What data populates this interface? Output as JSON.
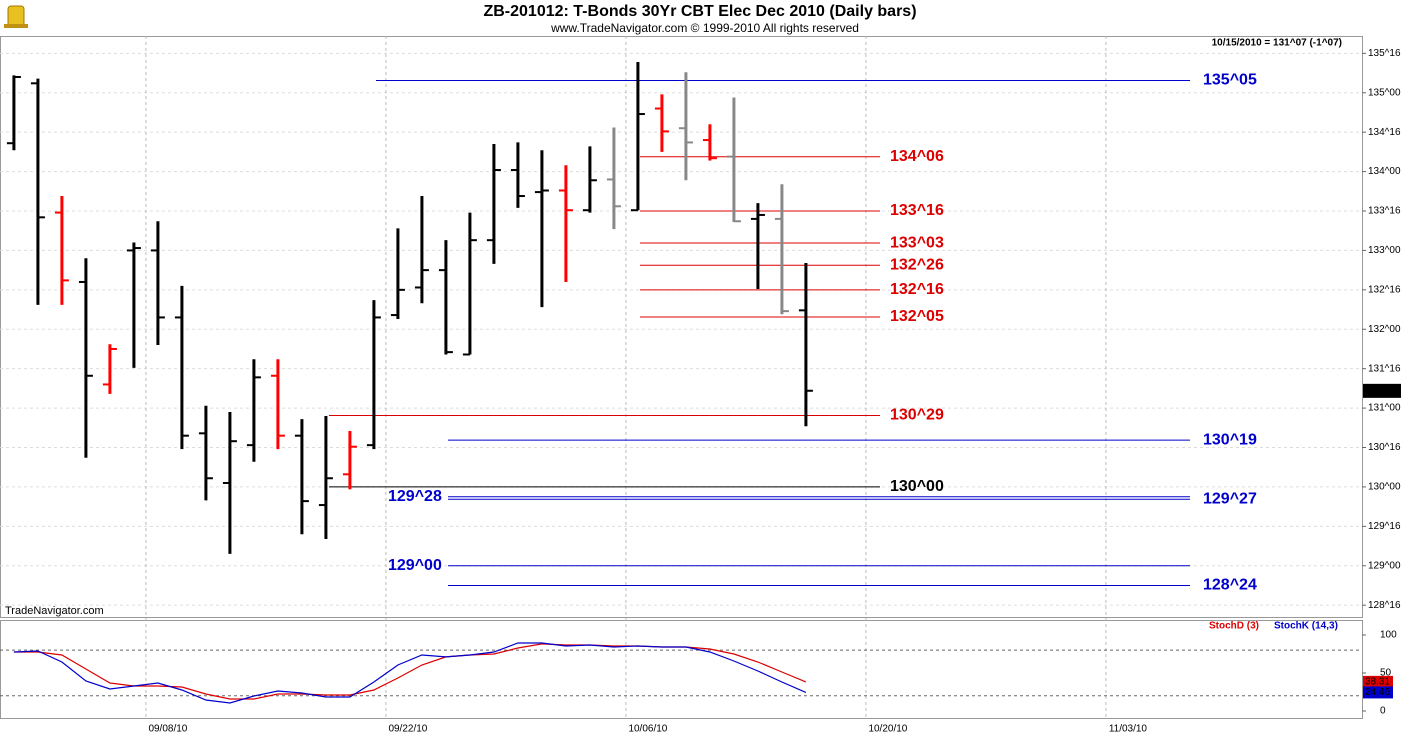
{
  "chart_data": [
    {
      "type": "ohlc",
      "title": "ZB-201012:  T-Bonds 30Yr CBT Elec Dec 2010  (Daily bars)",
      "subtitle": "www.TradeNavigator.com © 1999-2010 All rights reserved",
      "quote": "10/15/2010 = 131^07 (-1^07)",
      "watermark": "TradeNavigator.com",
      "open": [
        134.36,
        135.12,
        133.48,
        132.6,
        131.3,
        133.0,
        133.0,
        132.15,
        130.68,
        130.05,
        130.53,
        131.41,
        130.65,
        129.77,
        130.16,
        130.53,
        132.18,
        132.53,
        132.75,
        131.68,
        133.13,
        134.02,
        133.74,
        133.76,
        133.51,
        133.9,
        133.51,
        134.8,
        134.55,
        134.4,
        134.19,
        133.4,
        133.4,
        132.24
      ],
      "high": [
        135.22,
        135.18,
        133.69,
        132.9,
        131.81,
        133.1,
        133.37,
        132.55,
        131.03,
        130.95,
        131.62,
        131.62,
        130.86,
        130.9,
        130.71,
        132.37,
        133.28,
        133.69,
        133.13,
        133.48,
        134.35,
        134.37,
        134.27,
        134.08,
        134.32,
        134.56,
        135.39,
        134.98,
        135.26,
        134.6,
        134.94,
        133.6,
        133.84,
        132.84
      ],
      "low": [
        134.27,
        132.31,
        132.31,
        130.37,
        131.18,
        131.51,
        131.8,
        130.48,
        129.83,
        129.15,
        130.32,
        130.48,
        129.4,
        129.34,
        129.97,
        130.48,
        132.13,
        132.33,
        131.68,
        131.68,
        132.83,
        133.54,
        132.28,
        132.6,
        133.48,
        133.27,
        133.51,
        134.25,
        133.89,
        134.14,
        133.36,
        132.51,
        132.19,
        130.77
      ],
      "close": [
        135.2,
        133.42,
        132.62,
        131.41,
        131.75,
        133.03,
        132.15,
        130.65,
        130.11,
        130.58,
        131.39,
        130.65,
        129.82,
        130.11,
        130.51,
        132.15,
        132.5,
        132.75,
        131.71,
        133.13,
        134.02,
        133.69,
        133.76,
        133.51,
        133.89,
        133.56,
        134.73,
        134.51,
        134.37,
        134.17,
        133.37,
        133.45,
        132.23,
        131.22
      ],
      "colors": [
        "#000000",
        "#000000",
        "#ff0000",
        "#000000",
        "#ff0000",
        "#000000",
        "#000000",
        "#000000",
        "#000000",
        "#000000",
        "#000000",
        "#ff0000",
        "#000000",
        "#000000",
        "#ff0000",
        "#000000",
        "#000000",
        "#000000",
        "#000000",
        "#000000",
        "#000000",
        "#000000",
        "#000000",
        "#ff0000",
        "#000000",
        "#888888",
        "#000000",
        "#ff0000",
        "#888888",
        "#ff0000",
        "#888888",
        "#000000",
        "#888888",
        "#000000"
      ],
      "xlim": [
        -0.58,
        56.17
      ],
      "xticks": [
        {
          "value": 6,
          "label": "09/08/10"
        },
        {
          "value": 16,
          "label": "09/22/10"
        },
        {
          "value": 26,
          "label": "10/06/10"
        },
        {
          "value": 36,
          "label": "10/20/10"
        },
        {
          "value": 46,
          "label": "11/03/10"
        }
      ],
      "ylim": [
        128.35,
        135.72
      ],
      "yticks": [
        {
          "value": 135.5,
          "label": "135^16"
        },
        {
          "value": 135,
          "label": "135^00"
        },
        {
          "value": 134.5,
          "label": "134^16"
        },
        {
          "value": 134,
          "label": "134^00"
        },
        {
          "value": 133.5,
          "label": "133^16"
        },
        {
          "value": 133,
          "label": "133^00"
        },
        {
          "value": 132.5,
          "label": "132^16"
        },
        {
          "value": 132,
          "label": "132^00"
        },
        {
          "value": 131.5,
          "label": "131^16"
        },
        {
          "value": 131,
          "label": "131^00"
        },
        {
          "value": 130.5,
          "label": "130^16"
        },
        {
          "value": 130,
          "label": "130^00"
        },
        {
          "value": 129.5,
          "label": "129^16"
        },
        {
          "value": 129,
          "label": "129^00"
        },
        {
          "value": 128.5,
          "label": "128^16"
        }
      ],
      "last_price": {
        "value": 131.21875,
        "label": "131^07"
      },
      "levels": [
        {
          "value": 135.15625,
          "label": "135^05",
          "color": "#0000cc"
        },
        {
          "value": 134.1875,
          "label": "134^06",
          "color": "#dd0000"
        },
        {
          "value": 133.5,
          "label": "133^16",
          "color": "#dd0000"
        },
        {
          "value": 133.09375,
          "label": "133^03",
          "color": "#dd0000"
        },
        {
          "value": 132.8125,
          "label": "132^26",
          "color": "#dd0000"
        },
        {
          "value": 132.5,
          "label": "132^16",
          "color": "#dd0000"
        },
        {
          "value": 132.15625,
          "label": "132^05",
          "color": "#dd0000"
        },
        {
          "value": 130.90625,
          "label": "130^29",
          "color": "#dd0000"
        },
        {
          "value": 130.59375,
          "label": "130^19",
          "color": "#0000cc"
        },
        {
          "value": 130,
          "label": "130^00",
          "color": "#000000"
        },
        {
          "value": 129.875,
          "label": "129^28",
          "color": "#0000cc"
        },
        {
          "value": 129.84375,
          "label": "129^27",
          "color": "#0000cc"
        },
        {
          "value": 129,
          "label": "129^00",
          "color": "#0000cc"
        },
        {
          "value": 128.75,
          "label": "128^24",
          "color": "#0000cc"
        }
      ],
      "grid": true
    },
    {
      "type": "line",
      "ylim": [
        -9.2,
        119.7
      ],
      "yticks": [
        0,
        50,
        100
      ],
      "guides": [
        80,
        20
      ],
      "series": [
        {
          "name": "StochD (3)",
          "color": "#dd0000",
          "values": [
            77.6,
            77.6,
            73.7,
            55.3,
            36.8,
            32.9,
            32.9,
            31.6,
            22.4,
            15.8,
            15.8,
            22.4,
            22.4,
            21.1,
            21.1,
            27.6,
            43.4,
            60.5,
            71.1,
            73.7,
            75.0,
            82.9,
            88.2,
            86.8,
            86.8,
            85.5,
            85.5,
            84.2,
            84.2,
            81.6,
            75.0,
            64.5,
            51.3,
            38.31
          ]
        },
        {
          "name": "StochK (14,3)",
          "color": "#0000cc",
          "values": [
            77.6,
            78.9,
            64.5,
            39.5,
            28.9,
            32.9,
            36.8,
            27.6,
            14.5,
            10.5,
            19.7,
            26.3,
            23.7,
            18.4,
            18.4,
            38.2,
            60.5,
            73.7,
            71.1,
            73.7,
            77.6,
            89.5,
            89.5,
            85.5,
            86.8,
            84.2,
            85.5,
            84.2,
            84.2,
            77.6,
            65.8,
            52.6,
            38.2,
            24.46
          ]
        }
      ]
    }
  ]
}
